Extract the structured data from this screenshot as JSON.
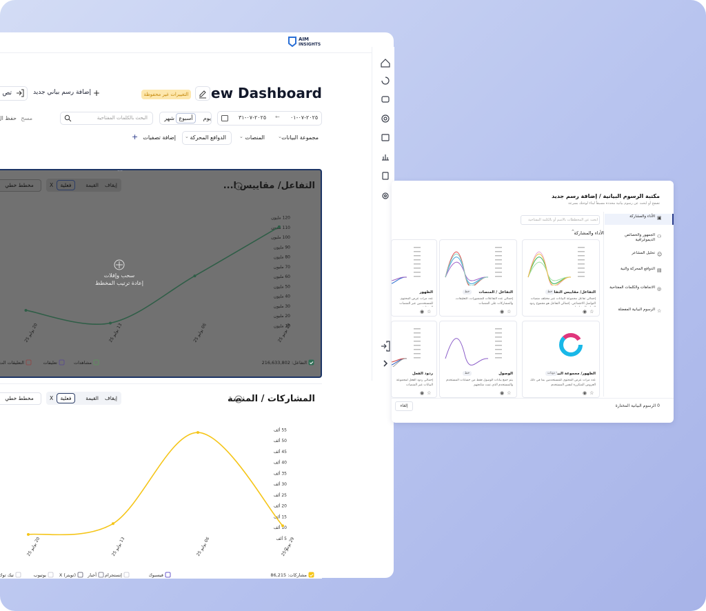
{
  "header": {
    "logo_top": "AIM",
    "logo_bottom": "INSIGHTS"
  },
  "dashboard": {
    "title": "New Dashboard",
    "unsaved_badge": "التغييرات غير محفوظة",
    "add_chart": "إضافة رسم بياني جديد",
    "export_button": "تص",
    "date_from": "٢٠٢٥-٠٧-٠١",
    "date_to": "٢٠٢٥-٠٧-٣١",
    "period_options": [
      "يوم",
      "أسبوع",
      "شهر"
    ],
    "search_placeholder": "البحث بالكلمات المفتاحية",
    "clear": "مسح",
    "save": "حفظ ال",
    "filters": [
      "مجموعة البيانات",
      "المنصات",
      "الدوافع المحركة"
    ],
    "add_filter": "إضافة تصفيات"
  },
  "drag_overlay": {
    "title": "سحب وإفلات",
    "subtitle": "إعادة ترتيب المخطط"
  },
  "chart_data": [
    {
      "type": "line",
      "title": "التفاعل/ مقاييس ا...",
      "controls": [
        "إيقاف",
        "القيمة",
        "فعلية",
        "X"
      ],
      "chart_type_label": "مخطط خطي",
      "categories": [
        "29 يونيو 25",
        "06 يوليو 25",
        "13 يوليو 25",
        "20 يوليو 25"
      ],
      "series": [
        {
          "color": "#2f5e47",
          "values": [
            111,
            61,
            13,
            26
          ]
        }
      ],
      "ylim": [
        0,
        120
      ],
      "yticks": [
        {
          "value": 10,
          "label": "10 مليون"
        },
        {
          "value": 20,
          "label": "20 مليون"
        },
        {
          "value": 30,
          "label": "30 مليون"
        },
        {
          "value": 40,
          "label": "40 مليون"
        },
        {
          "value": 50,
          "label": "50 مليون"
        },
        {
          "value": 60,
          "label": "60 مليون"
        },
        {
          "value": 70,
          "label": "70 مليون"
        },
        {
          "value": 80,
          "label": "80 مليون"
        },
        {
          "value": 90,
          "label": "90 مليون"
        },
        {
          "value": 100,
          "label": "100 مليون"
        },
        {
          "value": 110,
          "label": "110 مليون"
        },
        {
          "value": 120,
          "label": "120 مليون"
        }
      ],
      "legend": [
        {
          "label": "التفاعل: 216,633,802",
          "color": "#2f6e55",
          "checked": true
        },
        {
          "label": "مشاهدات",
          "color": "#5f8f5f",
          "checked": false
        },
        {
          "label": "تعليقات",
          "color": "#5b4f8a",
          "checked": false
        },
        {
          "label": "التعليقات الت...",
          "color": "#8a4b4b",
          "checked": false
        }
      ]
    },
    {
      "type": "line",
      "title": "المشاركات / المنصة",
      "controls": [
        "إيقاف",
        "القيمة",
        "فعلية",
        "X"
      ],
      "chart_type_label": "مخطط خطي",
      "categories": [
        "29 يونيو 25",
        "06 يوليو 25",
        "13 يوليو 25",
        "20 يوليو 25"
      ],
      "series": [
        {
          "color": "#f5c518",
          "values": [
            11,
            54,
            12,
            7
          ]
        }
      ],
      "ylim": [
        0,
        55
      ],
      "yticks": [
        0,
        {
          "value": 5,
          "label": "5 ألف"
        },
        {
          "value": 10,
          "label": "10 ألف"
        },
        {
          "value": 15,
          "label": "15 ألف"
        },
        {
          "value": 20,
          "label": "20 ألف"
        },
        {
          "value": 25,
          "label": "25 ألف"
        },
        {
          "value": 30,
          "label": "30 ألف"
        },
        {
          "value": 35,
          "label": "35 ألف"
        },
        {
          "value": 40,
          "label": "40 ألف"
        },
        {
          "value": 45,
          "label": "45 ألف"
        },
        {
          "value": 50,
          "label": "50 ألف"
        },
        {
          "value": 55,
          "label": "55 ألف"
        }
      ],
      "legend": [
        {
          "label": "مشاركات: 86,215",
          "color": "#f5c518",
          "checked": true
        },
        {
          "label": "فيسبوك",
          "color": "#6a5acd",
          "checked": false
        },
        {
          "label": "إنستجرام",
          "color": "#cfcfd8",
          "checked": false
        },
        {
          "label": "أخبار",
          "color": "#8a8a9a",
          "checked": false
        },
        {
          "label": "X (تويتر)",
          "color": "#7a7a8a",
          "checked": false
        },
        {
          "label": "يوتيوب",
          "color": "#cfcfd8",
          "checked": false
        },
        {
          "label": "تيك توك",
          "color": "#cfcfd8",
          "checked": false
        }
      ]
    }
  ],
  "chart_library": {
    "title": "مكتبة الرسوم البيانية / إضافة رسم جديد",
    "subtitle": "تصفح أو ابحث عن رسوم بيانية محددة مسبقاً لبناء لوحتك بسرعة",
    "categories": [
      "الأداء والمشاركة",
      "الجمهور والخصائص الديموغرافية",
      "تحليل المشاعر",
      "الدوافع المحركة والنية",
      "الاتجاهات والكلمات المفتاحية",
      "الرسوم البيانية المفضلة"
    ],
    "search_placeholder": "ابحث عن المخططات بالاسم أو بالكلمة المفتاحية",
    "section": "الأداء والمشاركة",
    "cards": [
      {
        "title": "التفاعل/ مقاييس التفاعل",
        "tag": "خط",
        "description": "إجمالي تفاعل مجموعة البيانات عبر مختلف منصات التواصل الاجتماعي. إجمالي التفاعل هو مجموع ردود الفعل، المشاهدات"
      },
      {
        "title": "التفاعل / المنصات",
        "tag": "خط",
        "description": "إجمالي عدد التفاعلات للمنشورات، التعليقات، والمشاركات على المنصات"
      },
      {
        "title": "الظهور",
        "tag": "خط",
        "description": "عدد مرات عرض المحتوى للمستخدمين عبر المنصات المختلفة"
      },
      {
        "title": "الظهور/ مجموعة البيانات",
        "tag": "دونات",
        "description": "عدد مرات عرض المحتوى للمستخدمين بما في ذلك العروض المتكررة لنفس المستخدم"
      },
      {
        "title": "الوصول",
        "tag": "خط",
        "description": "يتم جمع بيانات الوصول فقط من حسابات المستخدم والمستخدم الذي تمت متابعتهم"
      },
      {
        "title": "ردود الفعل",
        "tag": "خط",
        "description": "إجمالي ردود الفعل لمجموعة البيانات عبر المنصات"
      }
    ],
    "selected_count": "0 الرسوم البيانية المختارة",
    "cancel": "إلغاء"
  }
}
